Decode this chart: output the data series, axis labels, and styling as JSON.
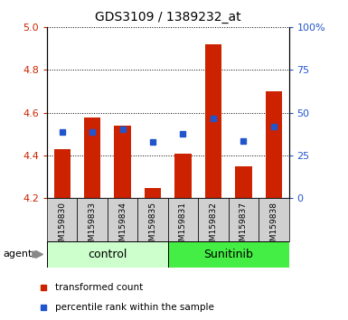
{
  "title": "GDS3109 / 1389232_at",
  "samples": [
    "GSM159830",
    "GSM159833",
    "GSM159834",
    "GSM159835",
    "GSM159831",
    "GSM159832",
    "GSM159837",
    "GSM159838"
  ],
  "bar_tops": [
    4.43,
    4.58,
    4.54,
    4.25,
    4.41,
    4.92,
    4.35,
    4.7
  ],
  "bar_base": 4.2,
  "blue_y": [
    4.51,
    4.51,
    4.525,
    4.465,
    4.5,
    4.575,
    4.47,
    4.535
  ],
  "ylim": [
    4.2,
    5.0
  ],
  "yticks_left": [
    4.2,
    4.4,
    4.6,
    4.8,
    5.0
  ],
  "yticks_right_vals": [
    0,
    25,
    50,
    75,
    100
  ],
  "yticks_right_labels": [
    "0",
    "25",
    "50",
    "75",
    "100%"
  ],
  "bar_color": "#cc2200",
  "blue_color": "#2255cc",
  "control_label": "control",
  "sunitinib_label": "Sunitinib",
  "agent_label": "agent",
  "control_bg": "#ccffcc",
  "sunitinib_bg": "#44ee44",
  "xticklabel_bg": "#d0d0d0",
  "legend1": "transformed count",
  "legend2": "percentile rank within the sample",
  "n_control": 4,
  "n_sunitinib": 4
}
